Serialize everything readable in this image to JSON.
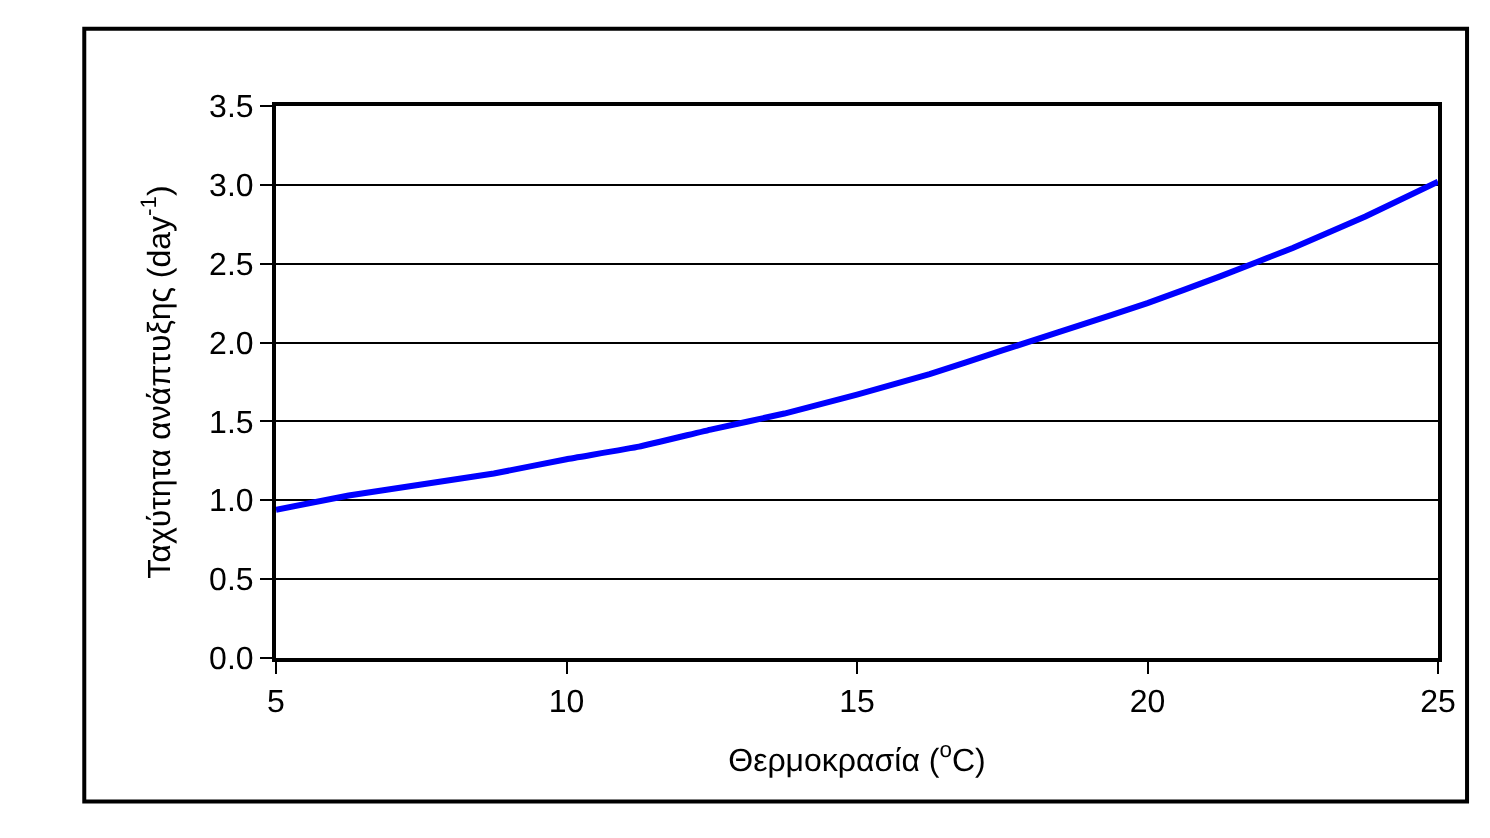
{
  "chart_data": {
    "type": "line",
    "xlabel": "Θερμοκρασία ($^{o}$C)",
    "ylabel": "Ταχύτητα ανάπτυξης (day$^{-1}$)",
    "x": [
      5,
      6.25,
      7.5,
      8.75,
      10,
      11.25,
      12.5,
      13.75,
      15,
      16.25,
      17.5,
      18.75,
      20,
      21.25,
      22.5,
      23.75,
      25
    ],
    "series": [
      {
        "color": "#0000ff",
        "values": [
          0.94,
          1.03,
          1.1,
          1.17,
          1.26,
          1.34,
          1.45,
          1.55,
          1.67,
          1.8,
          1.95,
          2.1,
          2.25,
          2.42,
          2.6,
          2.8,
          3.02
        ]
      }
    ],
    "xlim": [
      5,
      25
    ],
    "xticks": [
      5,
      10,
      15,
      20,
      25
    ],
    "ylim": [
      0,
      3.5
    ],
    "yticks": [
      {
        "value": 0,
        "label": "0.0"
      },
      {
        "value": 0.5,
        "label": "0.5"
      },
      {
        "value": 1,
        "label": "1.0"
      },
      {
        "value": 1.5,
        "label": "1.5"
      },
      {
        "value": 2,
        "label": "2.0"
      },
      {
        "value": 2.5,
        "label": "2.5"
      },
      {
        "value": 3,
        "label": "3.0"
      },
      {
        "value": 3.5,
        "label": "3.5"
      }
    ],
    "grid": "y",
    "legend": false,
    "marker": "none",
    "line_style": "solid"
  }
}
